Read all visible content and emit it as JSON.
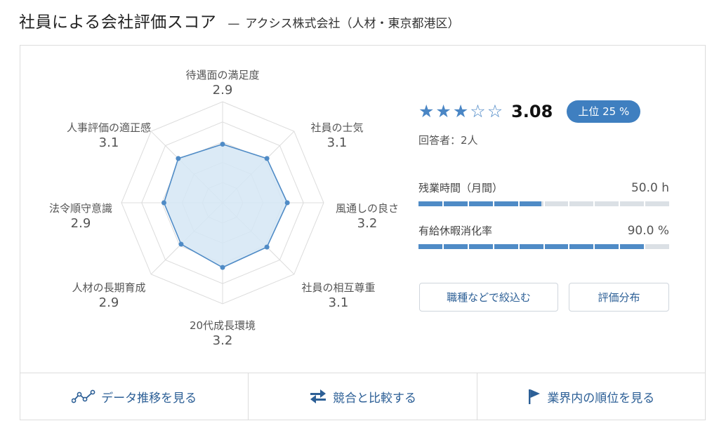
{
  "header": {
    "title": "社員による会社評価スコア",
    "dash": "—",
    "company": "アクシス株式会社（人材・東京都港区）"
  },
  "chart_data": {
    "type": "radar",
    "scale_max": 5,
    "categories": [
      "待遇面の満足度",
      "社員の士気",
      "風通しの良さ",
      "社員の相互尊重",
      "20代成長環境",
      "人材の長期育成",
      "法令順守意識",
      "人事評価の適正感"
    ],
    "values": [
      2.9,
      3.1,
      3.2,
      3.1,
      3.2,
      2.9,
      2.9,
      3.1
    ],
    "value_labels": [
      "2.9",
      "3.1",
      "3.2",
      "3.1",
      "3.2",
      "2.9",
      "2.9",
      "3.1"
    ]
  },
  "rating": {
    "stars_filled": 3,
    "stars_total": 5,
    "score": "3.08",
    "rank_badge": "上位 25 %",
    "respondents": "回答者：2人"
  },
  "metrics": [
    {
      "label": "残業時間（月間）",
      "value": "50.0  h",
      "fill_percent": 49
    },
    {
      "label": "有給休暇消化率",
      "value": "90.0 %",
      "fill_percent": 90
    }
  ],
  "buttons": {
    "filter": "職種などで絞込む",
    "distribution": "評価分布"
  },
  "bottom_links": [
    {
      "label": "データ推移を見る",
      "icon": "trend-line-icon"
    },
    {
      "label": "競合と比較する",
      "icon": "compare-arrows-icon"
    },
    {
      "label": "業界内の順位を見る",
      "icon": "flag-icon"
    }
  ],
  "colors": {
    "accent": "#3f7fc0",
    "link": "#2c5f96",
    "radar_fill": "#d5e6f5",
    "radar_line": "#4f8bc6",
    "bar_track": "#dbe0e5"
  }
}
